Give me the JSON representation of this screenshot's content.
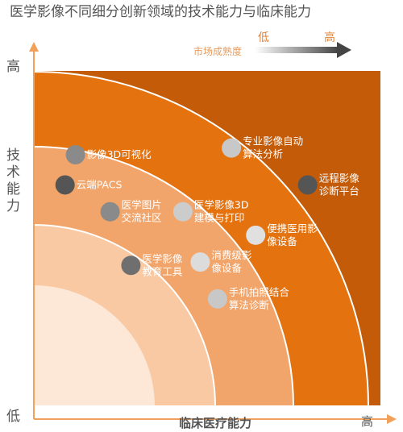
{
  "chart_data": {
    "type": "scatter",
    "title": "医学影像不同细分创新领域的技术能力与临床能力",
    "xlabel": "临床医疗能力",
    "ylabel": "技术能力",
    "x_low_label": "低",
    "x_high_label": "高",
    "y_high_label": "高",
    "legend": {
      "label": "市场成熟度",
      "low": "低",
      "high": "高"
    },
    "xlim": [
      0,
      100
    ],
    "ylim": [
      0,
      100
    ],
    "points": [
      {
        "name": "影像3D可视化",
        "x": 12,
        "y": 75,
        "color": "#8a8a8a"
      },
      {
        "name": "云端PACS",
        "x": 9,
        "y": 66,
        "color": "#555555"
      },
      {
        "name": "医学图片\n交流社区",
        "x": 22,
        "y": 58,
        "color": "#8a8a8a"
      },
      {
        "name": "医学影像3D\n建模与打印",
        "x": 43,
        "y": 58,
        "color": "#cccccc"
      },
      {
        "name": "专业影像自动\n算法分析",
        "x": 57,
        "y": 77,
        "color": "#c8c8c8"
      },
      {
        "name": "远程影像\n诊断平台",
        "x": 79,
        "y": 66,
        "color": "#555555"
      },
      {
        "name": "便携医用影\n像设备",
        "x": 64,
        "y": 51,
        "color": "#e0e0e0"
      },
      {
        "name": "医学影像\n教育工具",
        "x": 28,
        "y": 42,
        "color": "#6f6f6f"
      },
      {
        "name": "消费级影\n像设备",
        "x": 48,
        "y": 43,
        "color": "#dcdcdc"
      },
      {
        "name": "手机拍照结合\n算法诊断",
        "x": 53,
        "y": 32,
        "color": "#c8c8c8"
      }
    ],
    "colors": {
      "level_outer": "#c35b08",
      "level_2": "#e3720f",
      "level_3": "#f2a56a",
      "level_4": "#f8c9a3",
      "level_inner": "#fde7d6",
      "axis": "#f2a15a"
    }
  }
}
